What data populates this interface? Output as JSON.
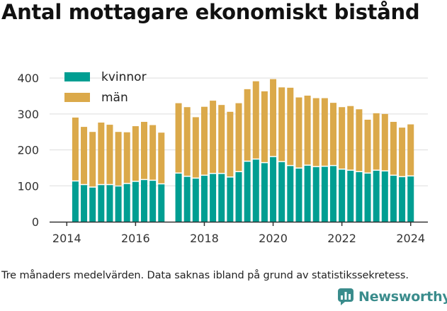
{
  "title": "Antal mottagare ekonomiskt bistånd",
  "note": "Tre månaders medelvärden. Data saknas ibland på grund av statistikssekretess.",
  "logo": {
    "text": "Newsworthy",
    "icon": "newsworthy-chart-icon"
  },
  "colors": {
    "kvinnor": "#009e92",
    "man": "#dba94a",
    "axis": "#333333",
    "grid": "#dddddd"
  },
  "chart_data": {
    "type": "bar",
    "stacked": true,
    "title": "Antal mottagare ekonomiskt bistånd",
    "xlabel": "",
    "ylabel": "",
    "ylim": [
      0,
      420
    ],
    "yticks": [
      0,
      100,
      200,
      300,
      400
    ],
    "xticks": [
      "2014",
      "2016",
      "2018",
      "2020",
      "2022",
      "2024"
    ],
    "xlim": [
      2013.5,
      2024.5
    ],
    "grid": "horizontal",
    "legend": "top-left",
    "x": [
      2014.25,
      2014.5,
      2014.75,
      2015.0,
      2015.25,
      2015.5,
      2015.75,
      2016.0,
      2016.25,
      2016.5,
      2016.75,
      2017.25,
      2017.5,
      2017.75,
      2018.0,
      2018.25,
      2018.5,
      2018.75,
      2019.0,
      2019.25,
      2019.5,
      2019.75,
      2020.0,
      2020.25,
      2020.5,
      2020.75,
      2021.0,
      2021.25,
      2021.5,
      2021.75,
      2022.0,
      2022.25,
      2022.5,
      2022.75,
      2023.0,
      2023.25,
      2023.5,
      2023.75,
      2024.0
    ],
    "series": [
      {
        "name": "kvinnor",
        "color": "#009e92",
        "values": [
          112,
          102,
          95,
          102,
          102,
          98,
          105,
          111,
          116,
          114,
          104,
          134,
          125,
          120,
          128,
          133,
          133,
          123,
          138,
          167,
          173,
          163,
          180,
          166,
          155,
          148,
          156,
          152,
          153,
          155,
          145,
          142,
          138,
          134,
          142,
          140,
          128,
          124,
          126
        ]
      },
      {
        "name": "män",
        "color": "#dba94a",
        "values": [
          178,
          162,
          155,
          174,
          168,
          152,
          144,
          155,
          162,
          155,
          144,
          196,
          194,
          171,
          192,
          204,
          192,
          183,
          192,
          202,
          218,
          200,
          217,
          208,
          218,
          198,
          195,
          192,
          191,
          176,
          174,
          180,
          175,
          150,
          160,
          160,
          150,
          138,
          145
        ]
      }
    ]
  }
}
